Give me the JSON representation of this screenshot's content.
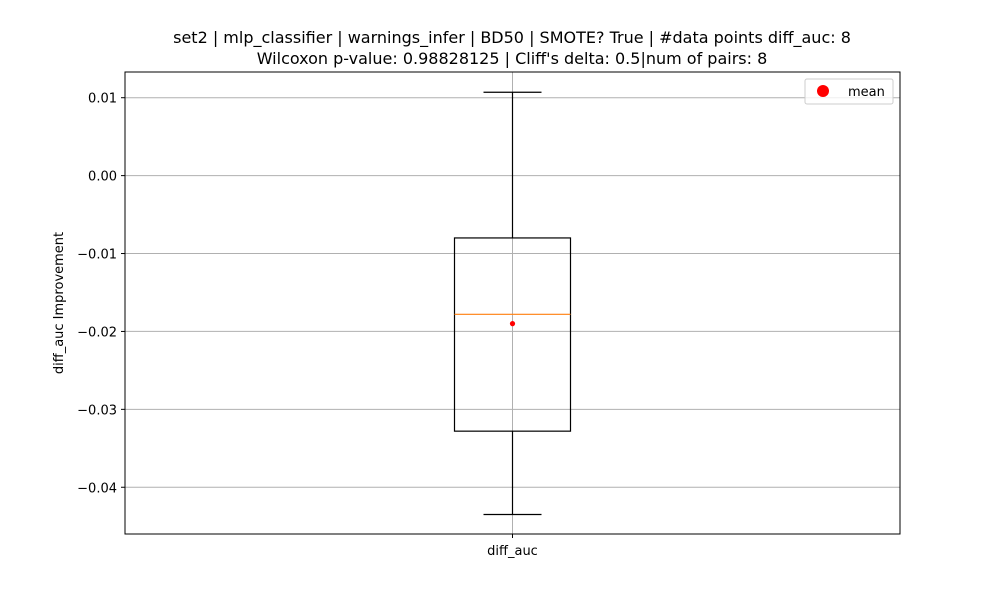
{
  "chart_data": {
    "type": "box",
    "title_line1": "set2 | mlp_classifier | warnings_infer | BD50 | SMOTE? True | #data points diff_auc: 8",
    "title_line2": "Wilcoxon p-value: 0.98828125 | Cliff's delta: 0.5|num of pairs: 8",
    "xlabel": "",
    "ylabel": "diff_auc Improvement",
    "categories": [
      "diff_auc"
    ],
    "ylim": [
      -0.046,
      0.0133
    ],
    "yticks": [
      0.01,
      0.0,
      -0.01,
      -0.02,
      -0.03,
      -0.04
    ],
    "ytick_labels": [
      "0.01",
      "0.00",
      "−0.01",
      "−0.02",
      "−0.03",
      "−0.04"
    ],
    "box": {
      "whisker_low": -0.0435,
      "q1": -0.0328,
      "median": -0.0178,
      "q3": -0.008,
      "whisker_high": 0.0107,
      "mean": -0.019
    },
    "legend": {
      "label": "mean",
      "placement": "upper right"
    },
    "grid": true,
    "colors": {
      "box": "#000000",
      "median": "#ff7f0e",
      "mean": "#ff0000",
      "grid": "#b0b0b0"
    }
  }
}
